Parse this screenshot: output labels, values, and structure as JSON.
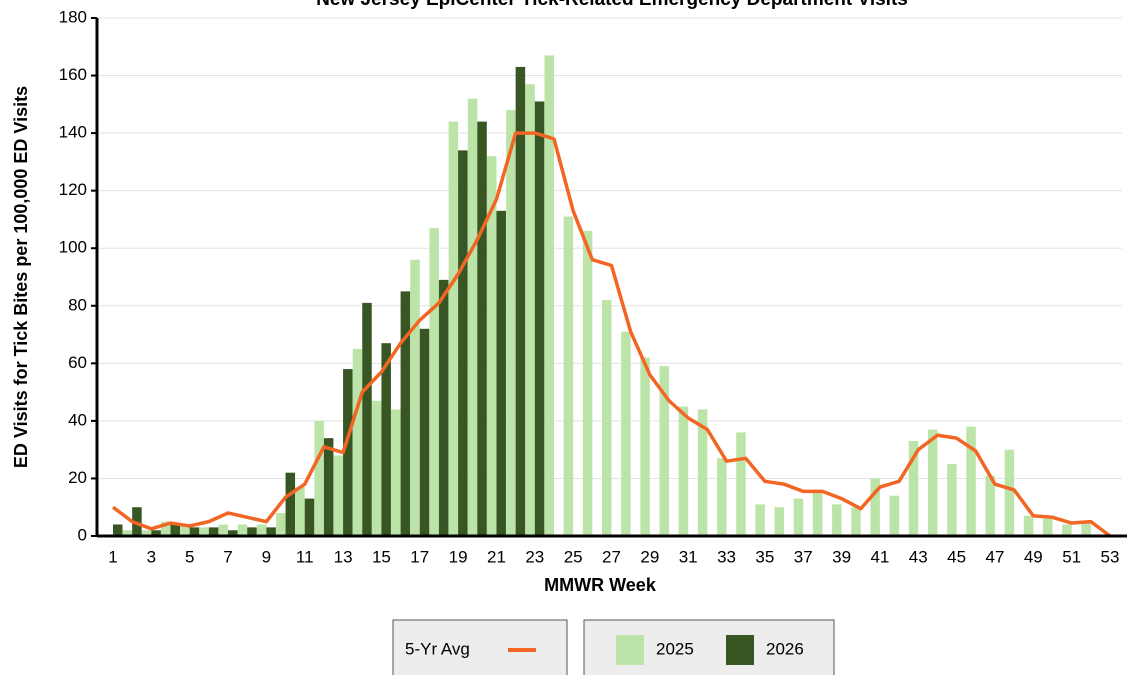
{
  "chart_data": {
    "type": "bar",
    "title": "New Jersey EpiCenter Tick-Related Emergency Department Visits",
    "x_label": "MMWR Week",
    "y_label": "ED Visits for Tick Bites per 100,000 ED Visits",
    "categories": [
      1,
      null,
      3,
      null,
      5,
      null,
      7,
      null,
      9,
      null,
      11,
      null,
      13,
      null,
      15,
      null,
      17,
      null,
      19,
      null,
      21,
      null,
      23,
      null,
      25,
      null,
      27,
      null,
      29,
      null,
      31,
      null,
      33,
      null,
      35,
      null,
      37,
      null,
      39,
      null,
      41,
      null,
      43,
      null,
      45,
      null,
      47,
      null,
      49,
      null,
      51,
      null,
      53
    ],
    "series": [
      {
        "name": "2025",
        "color": "#bde4a8",
        "type": "bar",
        "values": [
          0,
          2,
          2,
          5,
          4,
          3,
          4,
          4,
          4,
          8,
          17,
          40,
          28,
          65,
          47,
          44,
          96,
          107,
          144,
          152,
          132,
          148,
          157,
          167,
          111,
          106,
          82,
          71,
          62,
          59,
          45,
          44,
          27,
          36,
          11,
          10,
          13,
          15,
          11,
          10,
          20,
          14,
          33,
          37,
          25,
          38,
          21,
          30,
          7,
          6,
          4,
          5,
          0
        ]
      },
      {
        "name": "2026",
        "color": "#375623",
        "type": "bar",
        "values": [
          4,
          10,
          2,
          4,
          3,
          3,
          2,
          3,
          3,
          22,
          13,
          34,
          58,
          81,
          67,
          85,
          72,
          89,
          134,
          144,
          113,
          163,
          151,
          null,
          null,
          null,
          null,
          null,
          null,
          null,
          null,
          null,
          null,
          null,
          null,
          null,
          null,
          null,
          null,
          null,
          null,
          null,
          null,
          null,
          null,
          null,
          null,
          null,
          null,
          null,
          null,
          null,
          null
        ]
      },
      {
        "name": "5-Yr Avg",
        "color": "#f26522",
        "type": "line",
        "values": [
          10,
          5,
          2.5,
          4.5,
          3.5,
          5,
          8,
          6.5,
          5,
          13.5,
          18,
          31,
          29,
          50,
          57,
          67,
          75,
          81,
          91,
          103,
          117,
          140,
          140,
          138,
          113,
          96,
          94,
          71,
          56,
          47,
          41,
          37,
          26,
          27,
          19,
          18,
          15.5,
          15.5,
          13,
          9.5,
          17,
          19,
          30,
          35,
          34,
          29.5,
          18,
          16,
          7,
          6.5,
          4.5,
          5,
          0
        ]
      }
    ],
    "ylim": [
      0,
      180
    ],
    "yticks": [
      0,
      20,
      40,
      60,
      80,
      100,
      120,
      140,
      160,
      180
    ],
    "grid": true
  }
}
